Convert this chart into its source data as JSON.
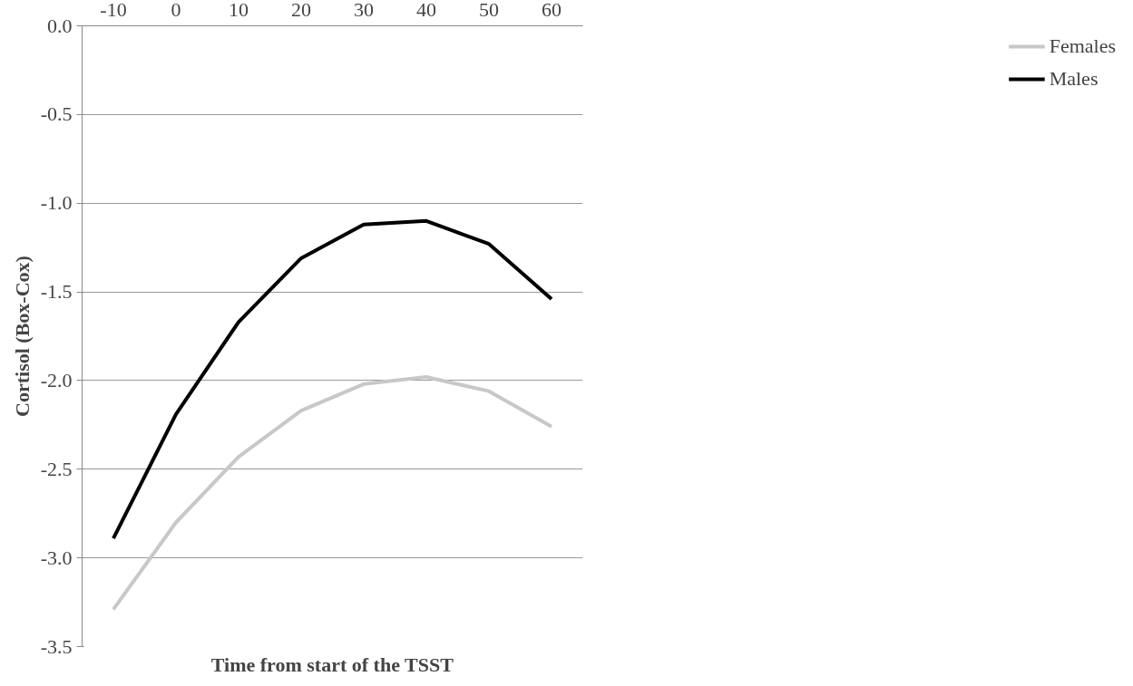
{
  "chart_data": {
    "type": "line",
    "categories": [
      "-10",
      "0",
      "10",
      "20",
      "30",
      "40",
      "50",
      "60"
    ],
    "xlabel": "Time from start of the TSST",
    "ylabel": "Cortisol (Box-Cox)",
    "series": [
      {
        "name": "Females",
        "color": "#c8c8c8",
        "values": [
          -3.29,
          -2.8,
          -2.43,
          -2.17,
          -2.02,
          -1.98,
          -2.06,
          -2.26
        ]
      },
      {
        "name": "Males",
        "color": "#000000",
        "values": [
          -2.89,
          -2.19,
          -1.67,
          -1.31,
          -1.12,
          -1.1,
          -1.23,
          -1.54
        ]
      }
    ],
    "ylim": [
      -3.5,
      0
    ],
    "yticks": [
      {
        "value": -3.5,
        "label": "-3.5"
      },
      {
        "value": -3.0,
        "label": "-3.0"
      },
      {
        "value": -2.5,
        "label": "-2.5"
      },
      {
        "value": -2.0,
        "label": "-2.0"
      },
      {
        "value": -1.5,
        "label": "-1.5"
      },
      {
        "value": -1.0,
        "label": "-1.0"
      },
      {
        "value": -0.5,
        "label": "-0.5"
      },
      {
        "value": 0,
        "label": "0.0"
      }
    ],
    "grid": "y",
    "legend": "right",
    "marker": "none",
    "line_style": "solid"
  }
}
